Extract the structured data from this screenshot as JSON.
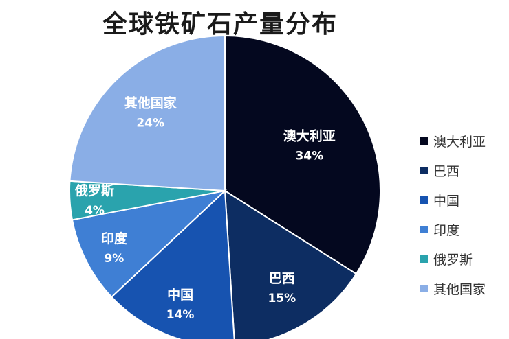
{
  "chart_data": {
    "type": "pie",
    "title": "全球铁矿石产量分布",
    "slices": [
      {
        "label": "澳大利亚",
        "value": 34,
        "value_label": "34%",
        "color": "#04081f",
        "label_color": "#ffffff"
      },
      {
        "label": "巴西",
        "value": 15,
        "value_label": "15%",
        "color": "#0d2d62",
        "label_color": "#ffffff"
      },
      {
        "label": "中国",
        "value": 14,
        "value_label": "14%",
        "color": "#1753b0",
        "label_color": "#b0243c"
      },
      {
        "label": "印度",
        "value": 9,
        "value_label": "9%",
        "color": "#3f7fd4",
        "label_color": "#ffffff"
      },
      {
        "label": "俄罗斯",
        "value": 4,
        "value_label": "4%",
        "color": "#2aa3ad",
        "label_color": "#ffffff"
      },
      {
        "label": "其他国家",
        "value": 24,
        "value_label": "24%",
        "color": "#8aaee6",
        "label_color": "#ffffff"
      }
    ],
    "legend": {
      "placement": "right",
      "items": [
        "澳大利亚",
        "巴西",
        "中国",
        "印度",
        "俄罗斯",
        "其他国家"
      ]
    }
  }
}
